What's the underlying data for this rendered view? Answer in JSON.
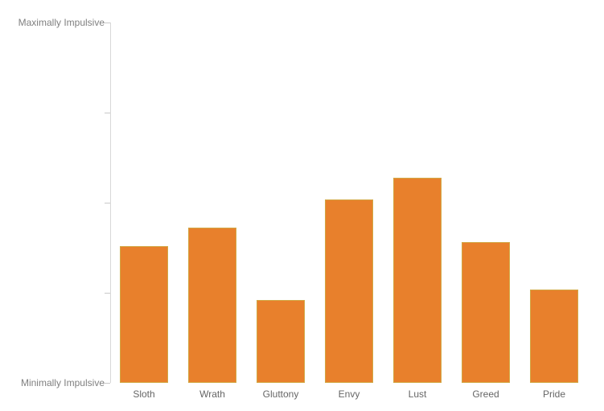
{
  "chart_data": {
    "type": "bar",
    "categories": [
      "Sloth",
      "Wrath",
      "Gluttony",
      "Envy",
      "Lust",
      "Greed",
      "Pride"
    ],
    "values": [
      0.38,
      0.43,
      0.23,
      0.51,
      0.57,
      0.39,
      0.26
    ],
    "title": "",
    "xlabel": "",
    "ylabel": "",
    "y_axis_top_label": "Maximally Impulsive",
    "y_axis_bottom_label": "Minimally Impulsive",
    "ylim": [
      0,
      1
    ],
    "y_tick_count": 5,
    "grid": false,
    "legend_position": "none",
    "bar_color": "#e8802c",
    "bar_border_color": "#d2a845",
    "axis_color": "#d8d8d8",
    "y_label_color": "#7f7f7f",
    "x_label_color": "#666666"
  }
}
